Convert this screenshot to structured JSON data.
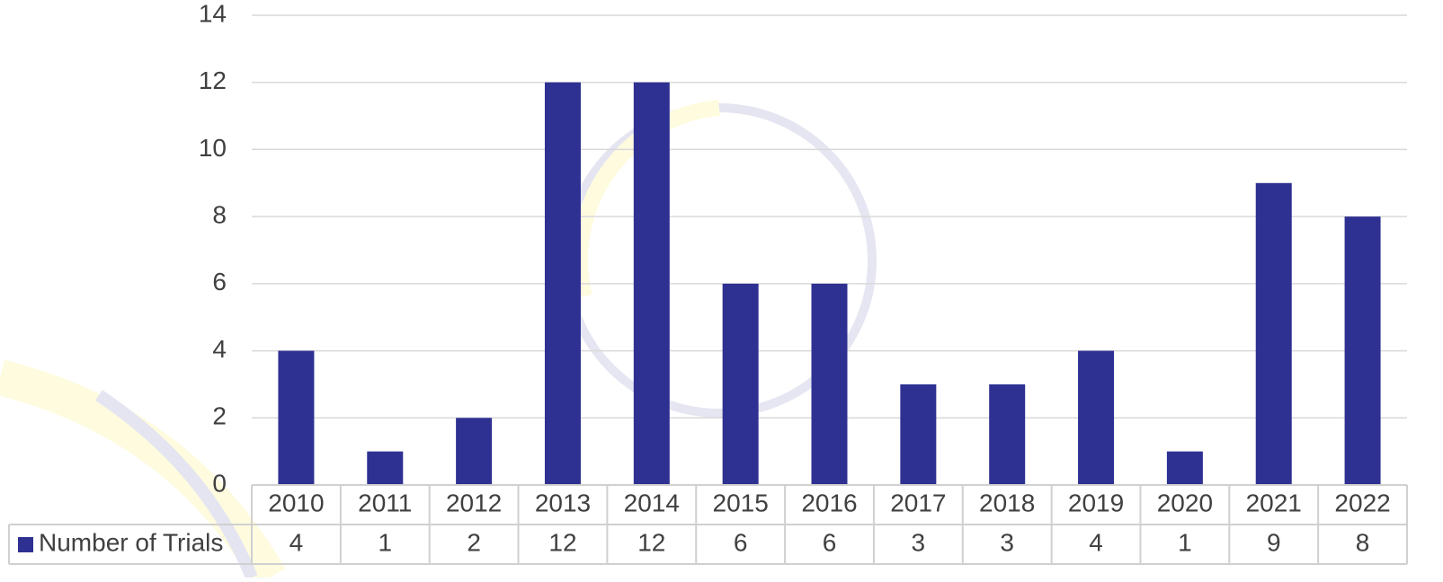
{
  "chart_data": {
    "type": "bar",
    "categories": [
      "2010",
      "2011",
      "2012",
      "2013",
      "2014",
      "2015",
      "2016",
      "2017",
      "2018",
      "2019",
      "2020",
      "2021",
      "2022"
    ],
    "series": [
      {
        "name": "Number of Trials",
        "color": "#2e3192",
        "values": [
          4,
          1,
          2,
          12,
          12,
          6,
          6,
          3,
          3,
          4,
          1,
          9,
          8
        ]
      }
    ],
    "ylim": [
      0,
      14
    ],
    "yticks": [
      0,
      2,
      4,
      6,
      8,
      10,
      12,
      14
    ],
    "grid": true,
    "data_table": true
  }
}
